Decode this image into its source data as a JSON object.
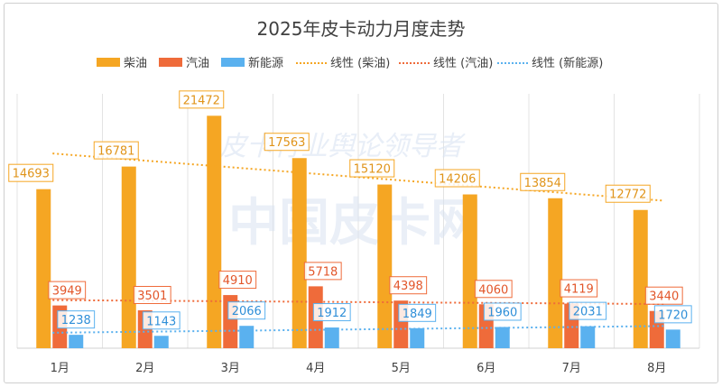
{
  "chart_data": {
    "type": "bar",
    "title": "2025年皮卡动力月度走势",
    "categories": [
      "1月",
      "2月",
      "3月",
      "4月",
      "5月",
      "6月",
      "7月",
      "8月"
    ],
    "series": [
      {
        "name": "柴油",
        "color": "#f5a623",
        "values": [
          14693,
          16781,
          21472,
          17563,
          15120,
          14206,
          13854,
          12772
        ]
      },
      {
        "name": "汽油",
        "color": "#ef6b3a",
        "values": [
          3949,
          3501,
          4910,
          5718,
          4398,
          4060,
          4119,
          3440
        ]
      },
      {
        "name": "新能源",
        "color": "#5ab1ef",
        "values": [
          1238,
          1143,
          2066,
          1912,
          1849,
          1960,
          2031,
          1720
        ]
      }
    ],
    "trendlines": [
      {
        "name": "线性 (柴油)",
        "series": "柴油",
        "color": "#f5a623"
      },
      {
        "name": "线性 (汽油)",
        "series": "汽油",
        "color": "#ef6b3a"
      },
      {
        "name": "线性 (新能源)",
        "series": "新能源",
        "color": "#5ab1ef"
      }
    ],
    "ylim": [
      0,
      23500
    ],
    "legend_position": "top",
    "grid": "vertical category separators",
    "xlabel": "",
    "ylabel": ""
  },
  "watermark": {
    "main": "中国皮卡网",
    "sub": "皮卡行业舆论领导者"
  }
}
